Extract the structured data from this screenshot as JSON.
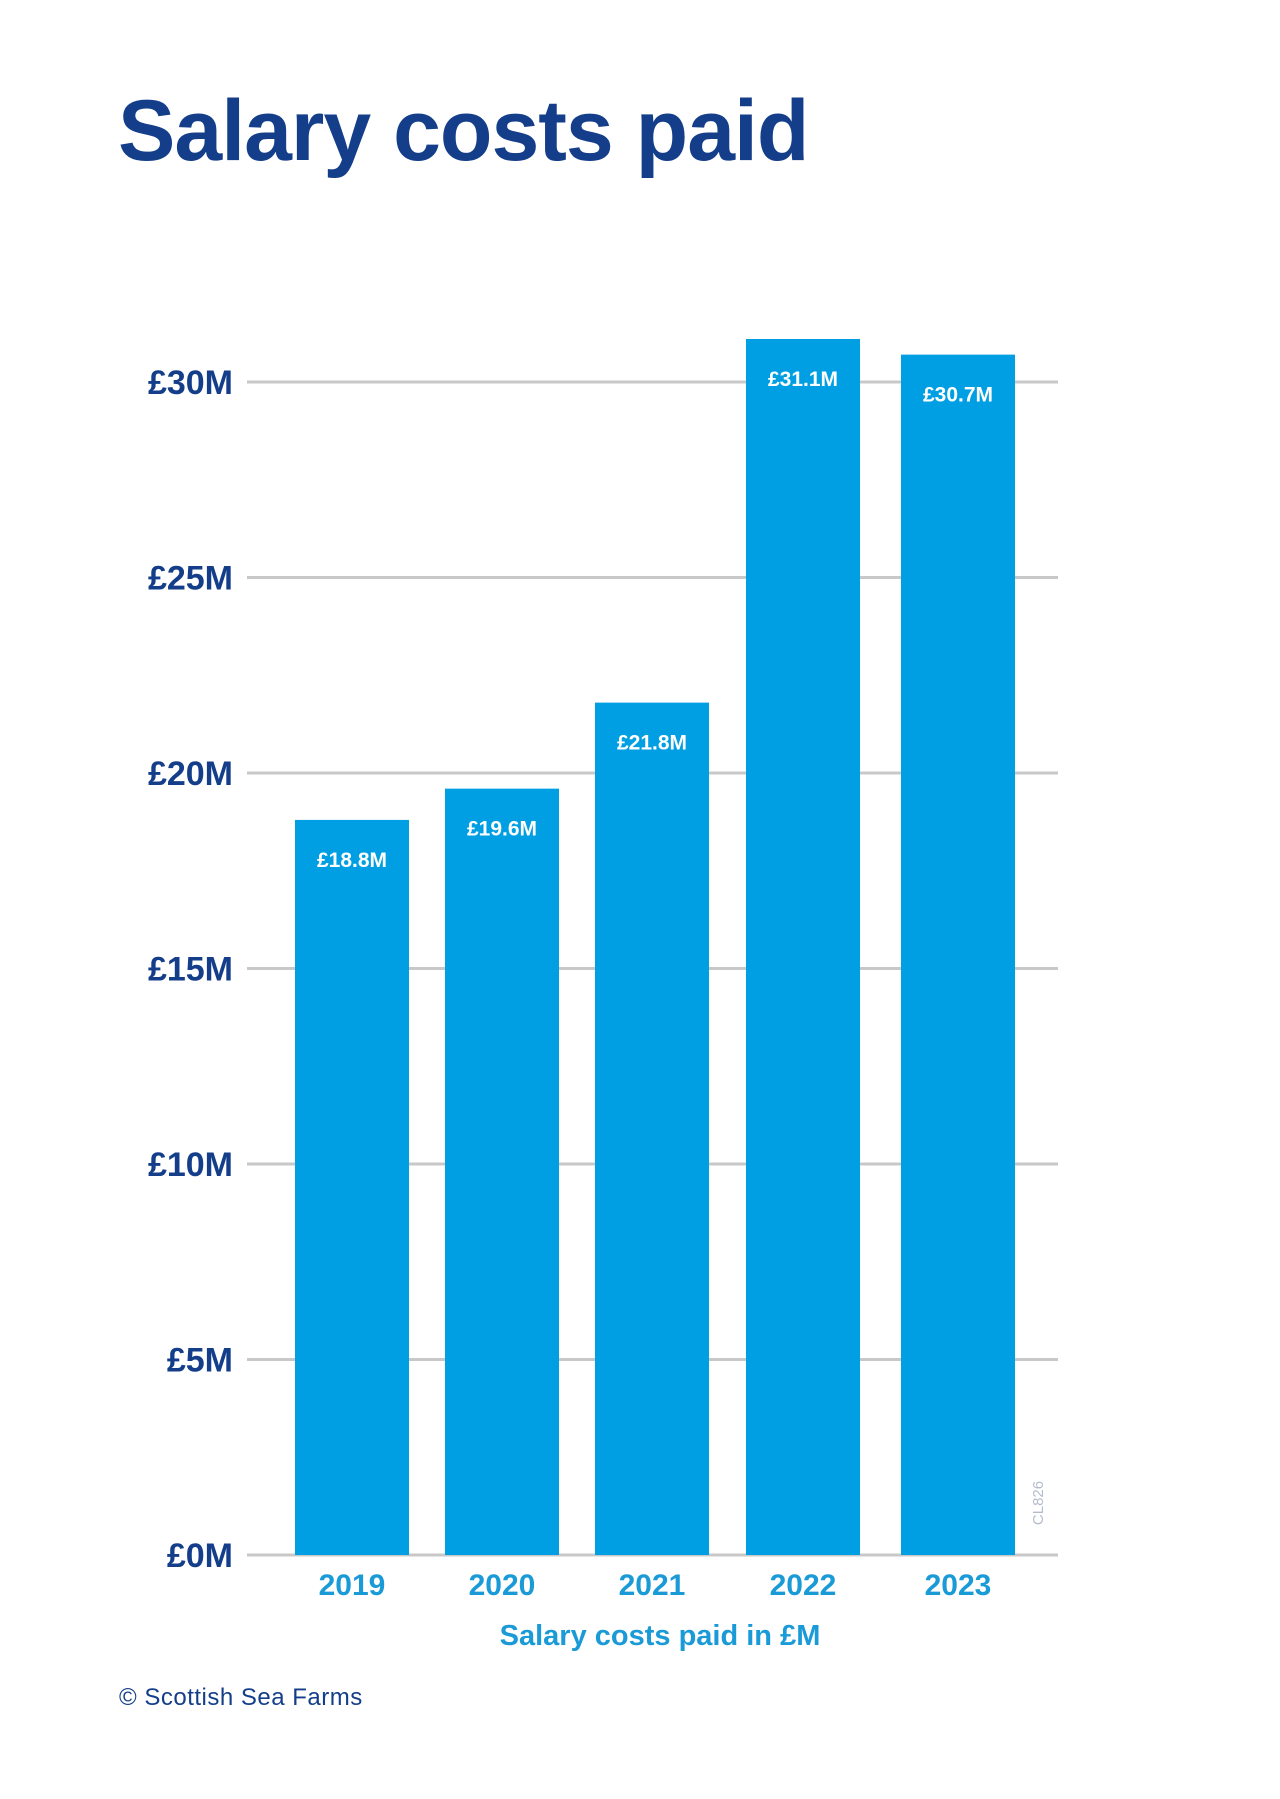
{
  "chart_data": {
    "type": "bar",
    "title": "Salary costs paid",
    "xlabel": "Salary costs paid in £M",
    "ylabel": "",
    "categories": [
      "2019",
      "2020",
      "2021",
      "2022",
      "2023"
    ],
    "values": [
      18.8,
      19.6,
      21.8,
      31.1,
      30.7
    ],
    "data_labels": [
      "£18.8M",
      "£19.6M",
      "£21.8M",
      "£31.1M",
      "£30.7M"
    ],
    "y_ticks": [
      0,
      5,
      10,
      15,
      20,
      25,
      30
    ],
    "y_tick_labels": [
      "£0M",
      "£5M",
      "£10M",
      "£15M",
      "£20M",
      "£25M",
      "£30M"
    ],
    "ylim": [
      0,
      31.5
    ],
    "grid": true,
    "legend": "none",
    "colors": {
      "bar": "#009fe3",
      "bar_label": "#ffffff",
      "title": "#143e8a",
      "y_tick": "#143e8a",
      "x_tick": "#1a9ad6",
      "grid": "#c8c8c8"
    }
  },
  "side_code": "CL826",
  "footer": "© Scottish Sea Farms"
}
